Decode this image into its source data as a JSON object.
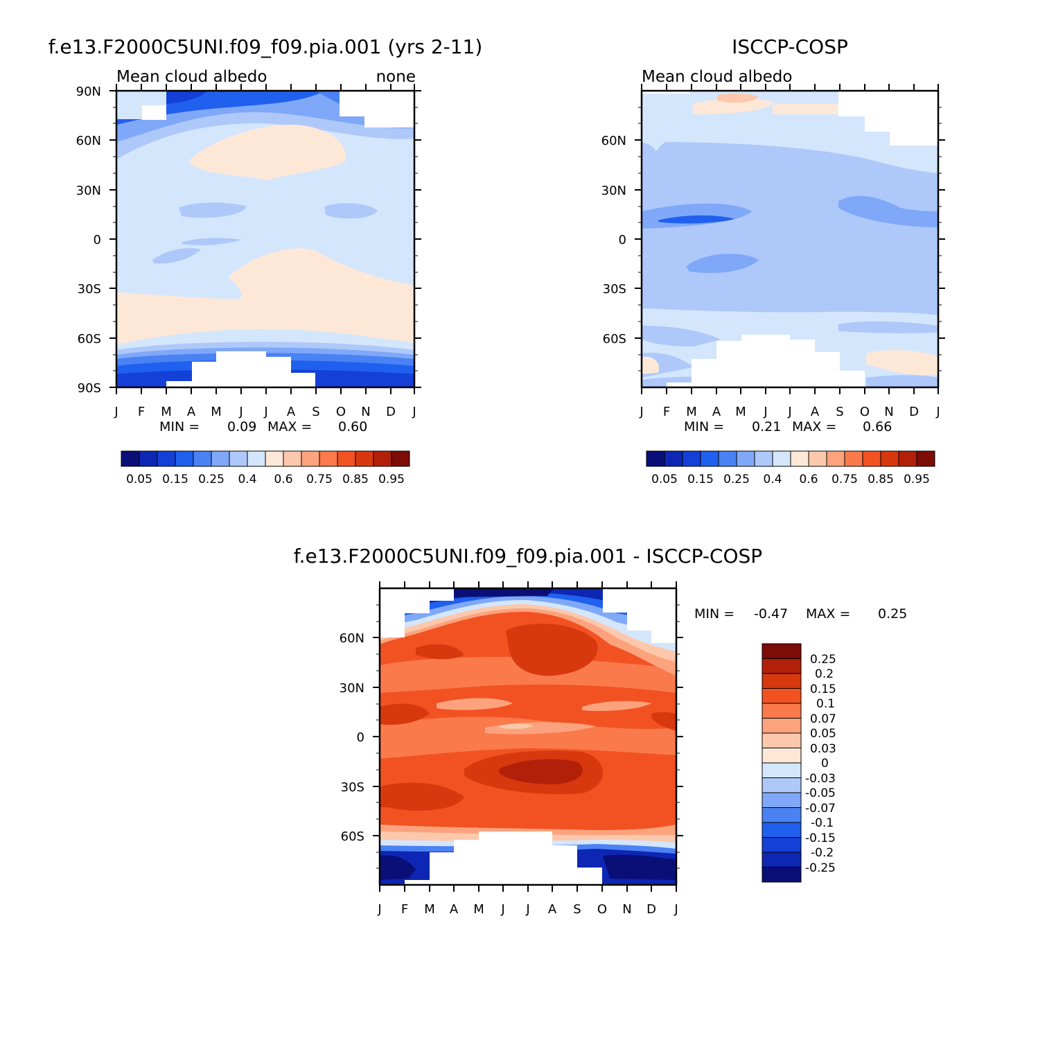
{
  "chart_data": [
    {
      "type": "heatmap",
      "title": "f.e13.F2000C5UNI.f09_f09.pia.001 (yrs 2-11)",
      "subtitle_left": "Mean cloud albedo",
      "subtitle_right": "none",
      "x_ticks": [
        "J",
        "F",
        "M",
        "A",
        "M",
        "J",
        "J",
        "A",
        "S",
        "O",
        "N",
        "D",
        "J"
      ],
      "y_ticks": [
        "90N",
        "60N",
        "30N",
        "0",
        "30S",
        "60S",
        "90S"
      ],
      "ylim": [
        -90,
        90
      ],
      "stats": {
        "min_label": "MIN =",
        "min": "0.09",
        "max_label": "MAX =",
        "max": "0.60"
      },
      "levels": [
        "0.05",
        "0.15",
        "0.25",
        "0.4",
        "0.6",
        "0.75",
        "0.85",
        "0.95"
      ]
    },
    {
      "type": "heatmap",
      "title": "ISCCP-COSP",
      "subtitle_left": "Mean cloud albedo",
      "x_ticks": [
        "J",
        "F",
        "M",
        "A",
        "M",
        "J",
        "J",
        "A",
        "S",
        "O",
        "N",
        "D",
        "J"
      ],
      "y_ticks": [
        "60N",
        "30N",
        "0",
        "30S",
        "60S"
      ],
      "ylim": [
        -90,
        90
      ],
      "stats": {
        "min_label": "MIN =",
        "min": "0.21",
        "max_label": "MAX =",
        "max": "0.66"
      },
      "levels": [
        "0.05",
        "0.15",
        "0.25",
        "0.4",
        "0.6",
        "0.75",
        "0.85",
        "0.95"
      ]
    },
    {
      "type": "heatmap",
      "title": "f.e13.F2000C5UNI.f09_f09.pia.001 - ISCCP-COSP",
      "x_ticks": [
        "J",
        "F",
        "M",
        "A",
        "M",
        "J",
        "J",
        "A",
        "S",
        "O",
        "N",
        "D",
        "J"
      ],
      "y_ticks": [
        "60N",
        "30N",
        "0",
        "30S",
        "60S"
      ],
      "ylim": [
        -90,
        90
      ],
      "stats": {
        "min_label": "MIN =",
        "min": "-0.47",
        "max_label": "MAX =",
        "max": "0.25"
      },
      "levels": [
        "0.25",
        "0.2",
        "0.15",
        "0.1",
        "0.07",
        "0.05",
        "0.03",
        "0",
        "-0.03",
        "-0.05",
        "-0.07",
        "-0.1",
        "-0.15",
        "-0.2",
        "-0.25"
      ]
    }
  ],
  "palette": [
    "#0a0f78",
    "#0d26b4",
    "#1440d8",
    "#2060ee",
    "#4a82f4",
    "#7fa8f8",
    "#aec8fa",
    "#d4e6fc",
    "#fde8d8",
    "#fcc8ac",
    "#fca37e",
    "#fa7a4c",
    "#f25222",
    "#d8380e",
    "#b2200a",
    "#7c0c06"
  ],
  "missing_color": "#ffffff"
}
